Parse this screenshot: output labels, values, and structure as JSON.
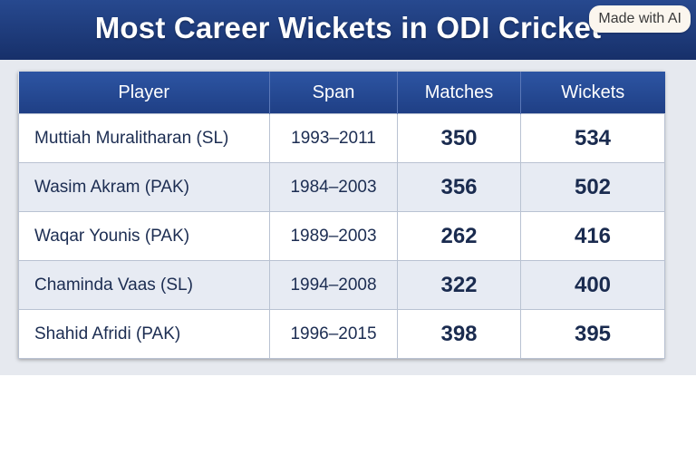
{
  "header": {
    "title": "Most Career Wickets in ODI Cricket",
    "badge": "Made with AI"
  },
  "table": {
    "columns": [
      "Player",
      "Span",
      "Matches",
      "Wickets"
    ],
    "rows": [
      {
        "player": "Muttiah Muralitharan (SL)",
        "span": "1993–2011",
        "matches": "350",
        "wickets": "534"
      },
      {
        "player": "Wasim Akram (PAK)",
        "span": "1984–2003",
        "matches": "356",
        "wickets": "502"
      },
      {
        "player": "Waqar Younis (PAK)",
        "span": "1989–2003",
        "matches": "262",
        "wickets": "416"
      },
      {
        "player": "Chaminda Vaas (SL)",
        "span": "1994–2008",
        "matches": "322",
        "wickets": "400"
      },
      {
        "player": "Shahid Afridi (PAK)",
        "span": "1996–2015",
        "matches": "398",
        "wickets": "395"
      }
    ]
  },
  "colors": {
    "header_bg": "#1f3d80",
    "table_header_bg": "#2449946",
    "row_alt_bg": "#e7ebf3",
    "text": "#1c2d52"
  }
}
